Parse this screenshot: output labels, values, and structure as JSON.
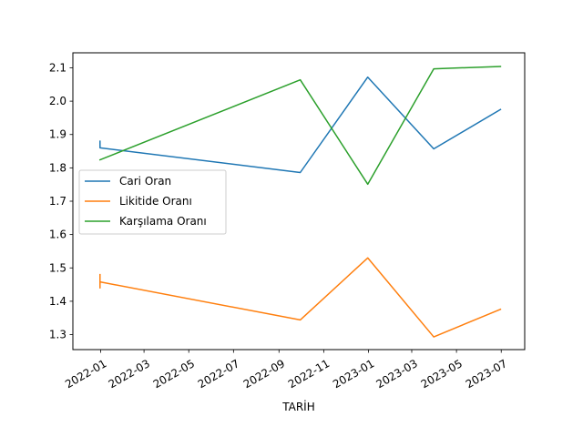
{
  "chart_data": {
    "type": "line",
    "title": "",
    "xlabel": "TARİH",
    "ylabel": "",
    "x_axis_kind": "date",
    "xlim": [
      "2021-11-24",
      "2023-08-02"
    ],
    "ylim": [
      1.255,
      2.145
    ],
    "x_ticks": [
      "2022-01",
      "2022-03",
      "2022-05",
      "2022-07",
      "2022-09",
      "2022-11",
      "2023-01",
      "2023-03",
      "2023-05",
      "2023-07"
    ],
    "x_tick_dates": [
      "2022-01-01",
      "2022-03-01",
      "2022-05-01",
      "2022-07-01",
      "2022-09-01",
      "2022-11-01",
      "2023-01-01",
      "2023-03-01",
      "2023-05-01",
      "2023-07-01"
    ],
    "y_ticks": [
      1.3,
      1.4,
      1.5,
      1.6,
      1.7,
      1.8,
      1.9,
      2.0,
      2.1
    ],
    "grid": false,
    "legend": "center-left",
    "series": [
      {
        "name": "Cari Oran",
        "color": "#1f77b4",
        "points": [
          [
            "2021-12-31",
            1.88
          ],
          [
            "2021-12-31",
            1.86
          ],
          [
            "2022-09-30",
            1.786
          ],
          [
            "2022-12-31",
            2.072
          ],
          [
            "2023-03-31",
            1.857
          ],
          [
            "2023-06-30",
            1.975
          ]
        ]
      },
      {
        "name": "Likitide Oranı",
        "color": "#ff7f0e",
        "points": [
          [
            "2021-12-31",
            1.48
          ],
          [
            "2021-12-31",
            1.44
          ],
          [
            "2021-12-31",
            1.458
          ],
          [
            "2022-09-30",
            1.344
          ],
          [
            "2022-12-31",
            1.53
          ],
          [
            "2023-03-31",
            1.293
          ],
          [
            "2023-06-30",
            1.376
          ]
        ]
      },
      {
        "name": "Karşılama Oranı",
        "color": "#2ca02c",
        "points": [
          [
            "2021-12-31",
            1.824
          ],
          [
            "2022-09-30",
            2.064
          ],
          [
            "2022-12-31",
            1.751
          ],
          [
            "2023-03-31",
            2.097
          ],
          [
            "2023-06-30",
            2.104
          ]
        ]
      }
    ]
  }
}
